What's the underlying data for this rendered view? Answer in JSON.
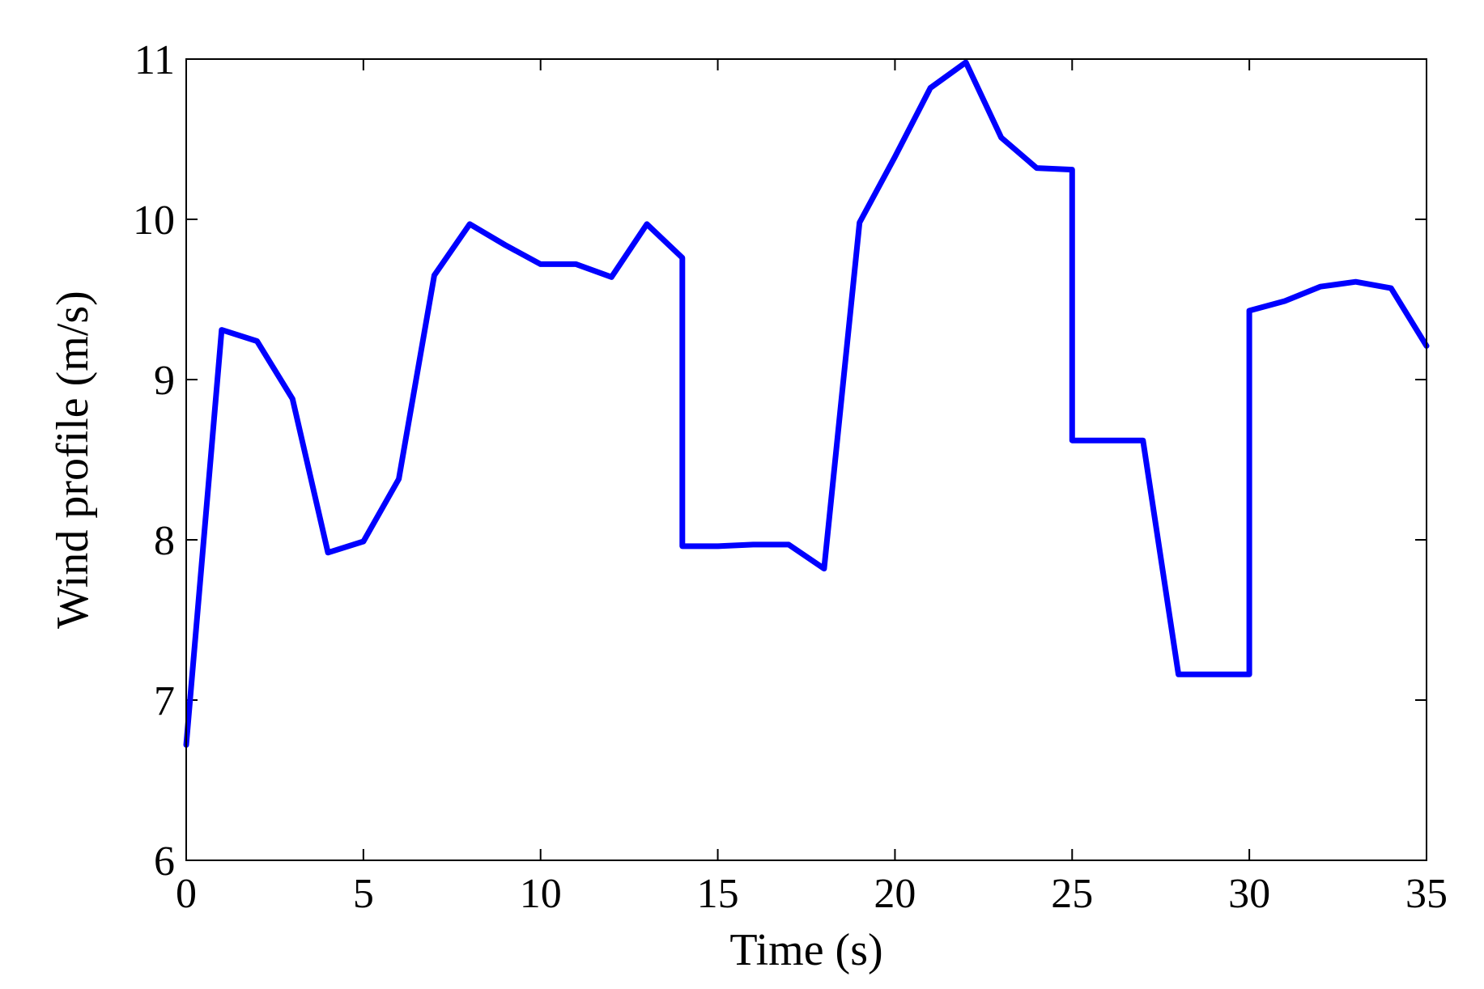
{
  "chart_data": {
    "type": "line",
    "title": "",
    "xlabel": "Time (s)",
    "ylabel": "Wind profile (m/s)",
    "xlim": [
      0,
      35
    ],
    "ylim": [
      6,
      11
    ],
    "xticks": [
      {
        "value": 0,
        "label": "0"
      },
      {
        "value": 5,
        "label": "5"
      },
      {
        "value": 10,
        "label": "10"
      },
      {
        "value": 15,
        "label": "15"
      },
      {
        "value": 20,
        "label": "20"
      },
      {
        "value": 25,
        "label": "25"
      },
      {
        "value": 30,
        "label": "30"
      },
      {
        "value": 35,
        "label": "35"
      }
    ],
    "yticks": [
      {
        "value": 6,
        "label": "6"
      },
      {
        "value": 7,
        "label": "7"
      },
      {
        "value": 8,
        "label": "8"
      },
      {
        "value": 9,
        "label": "9"
      },
      {
        "value": 10,
        "label": "10"
      },
      {
        "value": 11,
        "label": "11"
      }
    ],
    "grid": false,
    "legend": "none",
    "series": [
      {
        "color": "#0000ff",
        "points": [
          [
            0,
            6.72
          ],
          [
            1,
            9.31
          ],
          [
            2,
            9.24
          ],
          [
            3,
            8.88
          ],
          [
            4,
            7.92
          ],
          [
            5,
            7.99
          ],
          [
            6,
            8.38
          ],
          [
            7,
            9.65
          ],
          [
            8,
            9.97
          ],
          [
            9,
            9.84
          ],
          [
            10,
            9.72
          ],
          [
            11,
            9.72
          ],
          [
            12,
            9.64
          ],
          [
            13,
            9.97
          ],
          [
            14,
            9.76
          ],
          [
            14,
            7.96
          ],
          [
            15,
            7.96
          ],
          [
            16,
            7.97
          ],
          [
            17,
            7.97
          ],
          [
            18,
            7.82
          ],
          [
            19,
            9.98
          ],
          [
            20,
            10.39
          ],
          [
            21,
            10.82
          ],
          [
            22,
            10.98
          ],
          [
            23,
            10.51
          ],
          [
            24,
            10.32
          ],
          [
            25,
            10.31
          ],
          [
            25,
            8.62
          ],
          [
            26,
            8.62
          ],
          [
            27,
            8.62
          ],
          [
            28,
            7.16
          ],
          [
            29,
            7.16
          ],
          [
            30,
            7.16
          ],
          [
            30,
            9.43
          ],
          [
            31,
            9.49
          ],
          [
            32,
            9.58
          ],
          [
            33,
            9.61
          ],
          [
            34,
            9.57
          ],
          [
            35,
            9.21
          ]
        ]
      }
    ]
  }
}
